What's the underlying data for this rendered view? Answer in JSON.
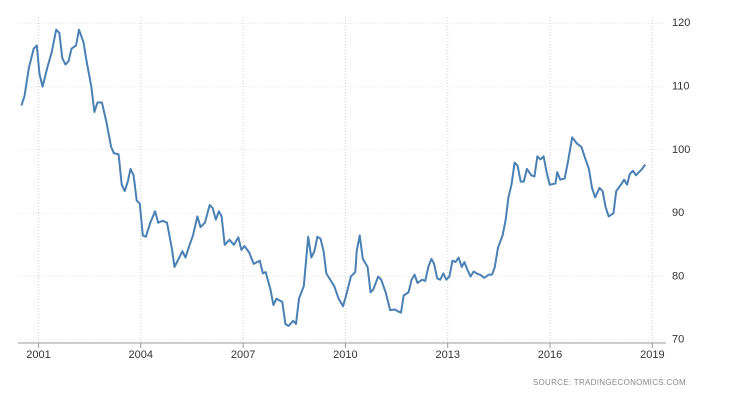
{
  "chart_data": {
    "type": "line",
    "source": "SOURCE: TRADINGECONOMICS.COM",
    "x": [
      2000.5,
      2000.59,
      2000.72,
      2000.86,
      2000.95,
      2001.03,
      2001.12,
      2001.26,
      2001.39,
      2001.52,
      2001.61,
      2001.7,
      2001.79,
      2001.88,
      2001.97,
      2002.1,
      2002.19,
      2002.32,
      2002.41,
      2002.55,
      2002.64,
      2002.73,
      2002.86,
      2002.99,
      2003.13,
      2003.21,
      2003.35,
      2003.44,
      2003.53,
      2003.62,
      2003.7,
      2003.79,
      2003.88,
      2003.97,
      2004.06,
      2004.15,
      2004.28,
      2004.42,
      2004.51,
      2004.64,
      2004.77,
      2004.91,
      2004.99,
      2005.13,
      2005.22,
      2005.31,
      2005.4,
      2005.53,
      2005.66,
      2005.75,
      2005.88,
      2006.02,
      2006.11,
      2006.2,
      2006.29,
      2006.37,
      2006.46,
      2006.6,
      2006.73,
      2006.86,
      2006.95,
      2007.04,
      2007.18,
      2007.31,
      2007.49,
      2007.58,
      2007.66,
      2007.8,
      2007.89,
      2007.98,
      2008.15,
      2008.24,
      2008.33,
      2008.47,
      2008.55,
      2008.64,
      2008.78,
      2008.91,
      2009.0,
      2009.09,
      2009.18,
      2009.27,
      2009.36,
      2009.44,
      2009.53,
      2009.67,
      2009.8,
      2009.93,
      2010.02,
      2010.16,
      2010.29,
      2010.33,
      2010.42,
      2010.51,
      2010.65,
      2010.74,
      2010.82,
      2010.96,
      2011.05,
      2011.18,
      2011.31,
      2011.45,
      2011.54,
      2011.63,
      2011.71,
      2011.85,
      2011.94,
      2012.03,
      2012.11,
      2012.25,
      2012.34,
      2012.43,
      2012.52,
      2012.6,
      2012.69,
      2012.78,
      2012.87,
      2012.96,
      2013.05,
      2013.14,
      2013.23,
      2013.32,
      2013.41,
      2013.49,
      2013.58,
      2013.67,
      2013.76,
      2013.85,
      2013.98,
      2014.07,
      2014.21,
      2014.3,
      2014.38,
      2014.47,
      2014.61,
      2014.7,
      2014.78,
      2014.87,
      2014.96,
      2015.05,
      2015.14,
      2015.23,
      2015.32,
      2015.45,
      2015.54,
      2015.63,
      2015.72,
      2015.81,
      2015.9,
      2015.99,
      2016.16,
      2016.21,
      2016.3,
      2016.43,
      2016.52,
      2016.65,
      2016.79,
      2016.92,
      2017.01,
      2017.14,
      2017.23,
      2017.32,
      2017.45,
      2017.54,
      2017.63,
      2017.72,
      2017.86,
      2017.94,
      2018.08,
      2018.17,
      2018.26,
      2018.34,
      2018.43,
      2018.52,
      2018.61,
      2018.7,
      2018.79
    ],
    "series": [
      {
        "color": "#4a80b4",
        "values": [
          107,
          108.5,
          113,
          116,
          116.5,
          112,
          110,
          113,
          115.5,
          119,
          118.5,
          114.5,
          113.5,
          114,
          116,
          116.5,
          119,
          117,
          114,
          110,
          106,
          107.5,
          107.5,
          104.5,
          100.5,
          99.5,
          99.3,
          94.5,
          93.5,
          95,
          97,
          96,
          92,
          91.5,
          86.5,
          86.3,
          88.5,
          90.3,
          88.5,
          88.8,
          88.5,
          84.5,
          81.5,
          83,
          84,
          83,
          84.5,
          86.5,
          89.5,
          87.8,
          88.5,
          91.3,
          90.8,
          89,
          90.3,
          89.5,
          85,
          85.8,
          85,
          86.2,
          84.2,
          84.8,
          83.8,
          82,
          82.5,
          80.5,
          80.7,
          78,
          75.5,
          76.5,
          76,
          72.5,
          72.2,
          73,
          72.5,
          76.5,
          78.5,
          86.3,
          83,
          84,
          86.3,
          86,
          84,
          80.5,
          79.7,
          78.5,
          76.5,
          75.3,
          77,
          80,
          80.7,
          84,
          86.5,
          82.8,
          81.5,
          77.5,
          78,
          80,
          79.5,
          77.5,
          74.7,
          74.8,
          74.5,
          74.3,
          77,
          77.5,
          79.5,
          80.3,
          79,
          79.5,
          79.3,
          81.5,
          82.8,
          82,
          79.7,
          79.5,
          80.5,
          79.5,
          80,
          82.5,
          82.3,
          83,
          81.5,
          82.3,
          81,
          80,
          80.8,
          80.5,
          80.2,
          79.8,
          80.3,
          80.3,
          81.5,
          84.5,
          86.5,
          89,
          92.5,
          94.5,
          98,
          97.5,
          95,
          95,
          97,
          96,
          95.8,
          99,
          98.5,
          99,
          96.5,
          94.5,
          94.7,
          96.5,
          95.3,
          95.5,
          98,
          102,
          101,
          100.5,
          99,
          97,
          94,
          92.5,
          94,
          93.5,
          91,
          89.5,
          90,
          93.5,
          94.5,
          95.3,
          94.5,
          96.2,
          96.7,
          96,
          96.5,
          97,
          97.7
        ]
      }
    ],
    "xlim": [
      2000.4,
      2019.4
    ],
    "xticks": [
      2001,
      2004,
      2007,
      2010,
      2013,
      2016,
      2019
    ],
    "ylim": [
      69.5,
      121
    ],
    "yticks": [
      70,
      80,
      90,
      100,
      110,
      120
    ],
    "grid": true
  }
}
